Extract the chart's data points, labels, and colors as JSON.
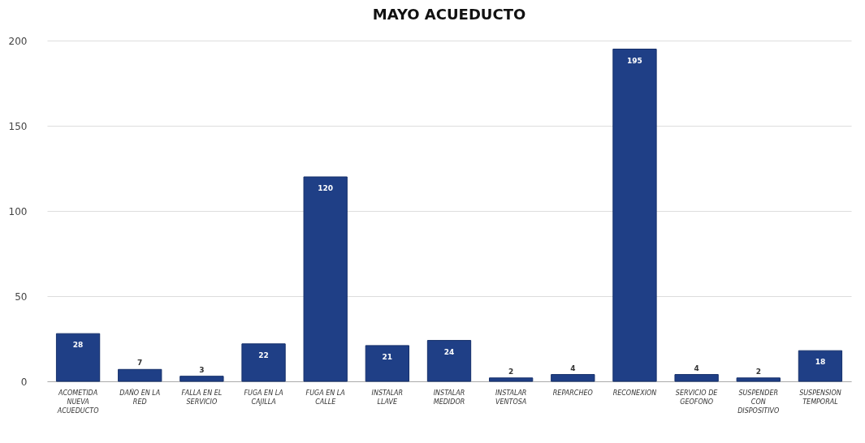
{
  "chart_data": {
    "type": "bar",
    "title": "MAYO ACUEDUCTO",
    "categories": [
      "ACOMETIDA NUEVA ACUEDUCTO",
      "DAÑO EN LA RED",
      "FALLA EN EL SERVICIO",
      "FUGA EN LA CAJILLA",
      "FUGA EN LA CALLE",
      "INSTALAR LLAVE",
      "INSTALAR MEDIDOR",
      "INSTALAR VENTOSA",
      "REPARCHEO",
      "RECONEXION",
      "SERVICIO DE GEOFONO",
      "SUSPENDER CON DISPOSITIVO",
      "SUSPENSION TEMPORAL"
    ],
    "values": [
      28,
      7,
      3,
      22,
      120,
      21,
      24,
      2,
      4,
      195,
      4,
      2,
      18
    ],
    "color": "#1f3f86",
    "ylim": [
      0,
      200
    ],
    "yticks": [
      0,
      50,
      100,
      150,
      200
    ],
    "grid": "y",
    "data_labels": true
  }
}
